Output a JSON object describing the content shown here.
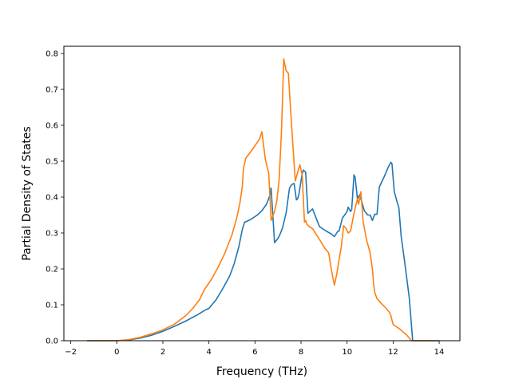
{
  "chart_data": {
    "type": "line",
    "title": "",
    "xlabel": "Frequency (THz)",
    "ylabel": "Partial Density of States",
    "xlim": [
      -2.3,
      14.9
    ],
    "ylim": [
      0.0,
      0.82
    ],
    "xticks": [
      -2,
      0,
      2,
      4,
      6,
      8,
      10,
      12,
      14
    ],
    "xtick_labels": [
      "−2",
      "0",
      "2",
      "4",
      "6",
      "8",
      "10",
      "12",
      "14"
    ],
    "yticks": [
      0.0,
      0.1,
      0.2,
      0.3,
      0.4,
      0.5,
      0.6,
      0.7,
      0.8
    ],
    "ytick_labels": [
      "0.0",
      "0.1",
      "0.2",
      "0.3",
      "0.4",
      "0.5",
      "0.6",
      "0.7",
      "0.8"
    ],
    "grid": false,
    "legend": "none",
    "series": [
      {
        "color": "#1f77b4",
        "x": [
          -1.3,
          0.0,
          0.5,
          1.0,
          1.5,
          2.0,
          2.5,
          3.0,
          3.5,
          3.8,
          4.0,
          4.3,
          4.6,
          4.9,
          5.1,
          5.3,
          5.45,
          5.55,
          5.8,
          6.1,
          6.3,
          6.5,
          6.65,
          6.7,
          6.85,
          7.0,
          7.1,
          7.2,
          7.35,
          7.5,
          7.6,
          7.7,
          7.8,
          7.85,
          7.9,
          8.05,
          8.1,
          8.2,
          8.3,
          8.5,
          8.8,
          9.1,
          9.3,
          9.45,
          9.6,
          9.65,
          9.8,
          9.95,
          10.0,
          10.05,
          10.15,
          10.2,
          10.3,
          10.35,
          10.45,
          10.55,
          10.6,
          10.75,
          10.9,
          11.0,
          11.1,
          11.2,
          11.3,
          11.4,
          11.6,
          11.8,
          11.9,
          11.95,
          12.05,
          12.2,
          12.25,
          12.35,
          12.5,
          12.7,
          12.8,
          12.85,
          14.0
        ],
        "y": [
          0.0,
          0.0,
          0.002,
          0.007,
          0.015,
          0.026,
          0.04,
          0.055,
          0.072,
          0.084,
          0.09,
          0.113,
          0.145,
          0.18,
          0.215,
          0.262,
          0.31,
          0.33,
          0.337,
          0.35,
          0.362,
          0.38,
          0.405,
          0.425,
          0.273,
          0.285,
          0.298,
          0.315,
          0.355,
          0.425,
          0.435,
          0.438,
          0.392,
          0.395,
          0.405,
          0.465,
          0.475,
          0.47,
          0.355,
          0.367,
          0.318,
          0.305,
          0.298,
          0.29,
          0.305,
          0.305,
          0.342,
          0.355,
          0.36,
          0.372,
          0.36,
          0.365,
          0.462,
          0.455,
          0.395,
          0.407,
          0.395,
          0.362,
          0.35,
          0.35,
          0.335,
          0.352,
          0.352,
          0.428,
          0.455,
          0.485,
          0.497,
          0.493,
          0.415,
          0.38,
          0.37,
          0.29,
          0.22,
          0.12,
          0.04,
          0.0,
          0.0
        ]
      },
      {
        "color": "#ff7f0e",
        "x": [
          -1.3,
          0.0,
          0.5,
          1.0,
          1.5,
          2.0,
          2.5,
          3.0,
          3.3,
          3.6,
          3.8,
          4.1,
          4.4,
          4.7,
          5.0,
          5.2,
          5.35,
          5.45,
          5.5,
          5.6,
          5.8,
          6.0,
          6.2,
          6.3,
          6.45,
          6.6,
          6.7,
          6.85,
          6.95,
          7.05,
          7.15,
          7.25,
          7.35,
          7.45,
          7.55,
          7.65,
          7.75,
          7.85,
          7.95,
          8.05,
          8.15,
          8.2,
          8.25,
          8.35,
          8.5,
          8.8,
          9.05,
          9.2,
          9.3,
          9.4,
          9.45,
          9.55,
          9.65,
          9.75,
          9.85,
          9.95,
          10.05,
          10.15,
          10.3,
          10.45,
          10.5,
          10.6,
          10.7,
          10.85,
          11.0,
          11.1,
          11.15,
          11.2,
          11.3,
          11.5,
          11.7,
          11.85,
          11.9,
          12.0,
          12.3,
          12.6,
          12.8,
          14.0
        ],
        "y": [
          0.0,
          0.0,
          0.003,
          0.009,
          0.019,
          0.03,
          0.046,
          0.07,
          0.09,
          0.115,
          0.142,
          0.17,
          0.205,
          0.245,
          0.295,
          0.34,
          0.385,
          0.43,
          0.48,
          0.508,
          0.525,
          0.543,
          0.562,
          0.582,
          0.505,
          0.465,
          0.335,
          0.36,
          0.39,
          0.45,
          0.582,
          0.785,
          0.752,
          0.745,
          0.64,
          0.542,
          0.445,
          0.468,
          0.49,
          0.462,
          0.33,
          0.335,
          0.325,
          0.318,
          0.312,
          0.282,
          0.256,
          0.245,
          0.205,
          0.17,
          0.155,
          0.185,
          0.225,
          0.262,
          0.32,
          0.313,
          0.3,
          0.305,
          0.355,
          0.395,
          0.38,
          0.415,
          0.33,
          0.28,
          0.245,
          0.2,
          0.16,
          0.135,
          0.117,
          0.103,
          0.09,
          0.078,
          0.07,
          0.045,
          0.032,
          0.015,
          0.0,
          0.0
        ]
      }
    ]
  }
}
